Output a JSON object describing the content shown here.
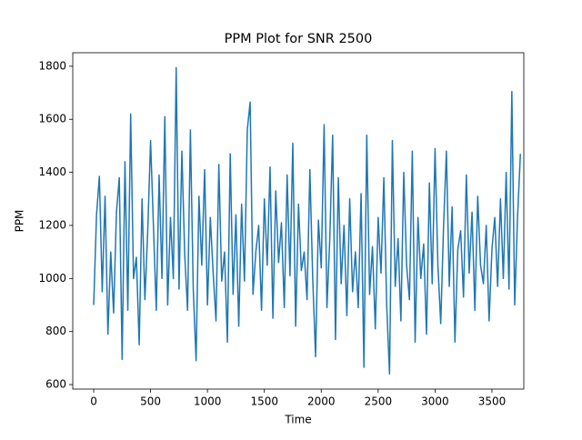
{
  "chart_data": {
    "type": "line",
    "title": "PPM Plot for SNR 2500",
    "xlabel": "Time",
    "ylabel": "PPM",
    "x": [
      0,
      25,
      50,
      75,
      100,
      125,
      150,
      175,
      200,
      225,
      250,
      275,
      300,
      325,
      350,
      375,
      400,
      425,
      450,
      475,
      500,
      525,
      550,
      575,
      600,
      625,
      650,
      675,
      700,
      725,
      750,
      775,
      800,
      825,
      850,
      875,
      900,
      925,
      950,
      975,
      1000,
      1025,
      1050,
      1075,
      1100,
      1125,
      1150,
      1175,
      1200,
      1225,
      1250,
      1275,
      1300,
      1325,
      1350,
      1375,
      1400,
      1425,
      1450,
      1475,
      1500,
      1525,
      1550,
      1575,
      1600,
      1625,
      1650,
      1675,
      1700,
      1725,
      1750,
      1775,
      1800,
      1825,
      1850,
      1875,
      1900,
      1925,
      1950,
      1975,
      2000,
      2025,
      2050,
      2075,
      2100,
      2125,
      2150,
      2175,
      2200,
      2225,
      2250,
      2275,
      2300,
      2325,
      2350,
      2375,
      2400,
      2425,
      2450,
      2475,
      2500,
      2525,
      2550,
      2575,
      2600,
      2625,
      2650,
      2675,
      2700,
      2725,
      2750,
      2775,
      2800,
      2825,
      2850,
      2875,
      2900,
      2925,
      2950,
      2975,
      3000,
      3025,
      3050,
      3075,
      3100,
      3125,
      3150,
      3175,
      3200,
      3225,
      3250,
      3275,
      3300,
      3325,
      3350,
      3375,
      3400,
      3425,
      3450,
      3475,
      3500,
      3525,
      3550,
      3575,
      3600,
      3625,
      3650,
      3675,
      3700,
      3725,
      3750
    ],
    "series": [
      {
        "color": "#1f77b4",
        "values": [
          900,
          1240,
          1385,
          950,
          1310,
          790,
          1100,
          870,
          1250,
          1380,
          695,
          1440,
          880,
          1620,
          1000,
          1080,
          750,
          1300,
          920,
          1180,
          1520,
          1200,
          880,
          1390,
          1000,
          1610,
          900,
          1230,
          1000,
          1795,
          960,
          1480,
          1090,
          880,
          1560,
          960,
          690,
          1310,
          1050,
          1410,
          900,
          1230,
          1020,
          840,
          1430,
          990,
          1100,
          760,
          1470,
          940,
          1240,
          820,
          1280,
          990,
          1560,
          1665,
          940,
          1100,
          1200,
          880,
          1300,
          1050,
          1420,
          850,
          1330,
          1060,
          1210,
          890,
          1390,
          1010,
          1510,
          820,
          1280,
          1030,
          1100,
          920,
          1410,
          1000,
          705,
          1220,
          1040,
          1580,
          890,
          1150,
          1540,
          770,
          1380,
          980,
          1200,
          860,
          1300,
          950,
          1100,
          890,
          1320,
          665,
          1540,
          940,
          1120,
          810,
          1230,
          1020,
          1380,
          900,
          640,
          1520,
          970,
          1150,
          840,
          1400,
          1050,
          920,
          1480,
          760,
          1230,
          1000,
          1130,
          790,
          1360,
          980,
          1490,
          1050,
          830,
          1200,
          1480,
          970,
          1270,
          760,
          1110,
          1180,
          930,
          1390,
          1020,
          1250,
          880,
          1310,
          1050,
          980,
          1200,
          840,
          1110,
          1230,
          970,
          1300,
          1000,
          1400,
          960,
          1705,
          900,
          1230,
          1470
        ]
      }
    ],
    "xlim": [
      -184,
      3780
    ],
    "ylim": [
      583,
      1851
    ],
    "xticks": [
      0,
      500,
      1000,
      1500,
      2000,
      2500,
      3000,
      3500
    ],
    "yticks": [
      600,
      800,
      1000,
      1200,
      1400,
      1600,
      1800
    ]
  }
}
